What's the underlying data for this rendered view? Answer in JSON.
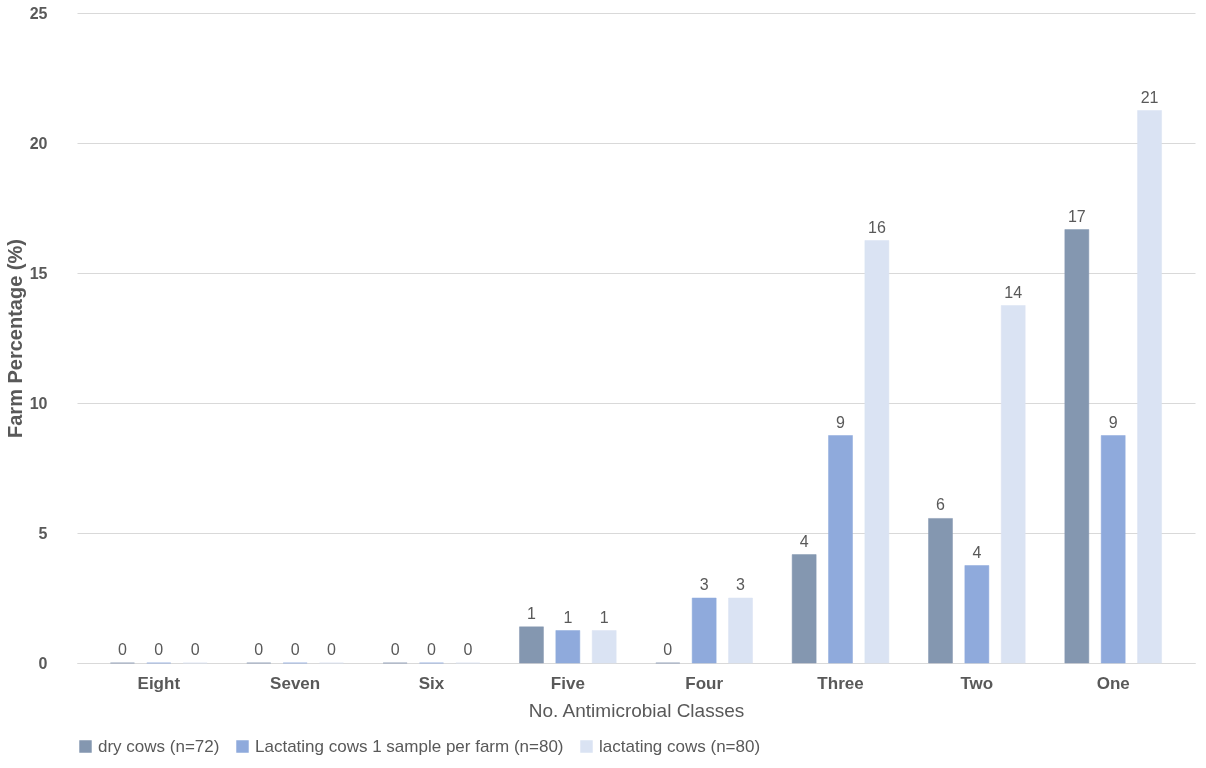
{
  "chart_data": {
    "type": "bar",
    "xlabel": "No. Antimicrobial Classes",
    "ylabel": "Farm Percentage (%)",
    "categories": [
      "Eight",
      "Seven",
      "Six",
      "Five",
      "Four",
      "Three",
      "Two",
      "One"
    ],
    "series": [
      {
        "name": "dry cows (n=72)",
        "color": "#8497b0",
        "values": [
          0,
          0,
          0,
          1.39,
          0,
          4.17,
          5.56,
          16.67
        ],
        "value_labels": [
          "0",
          "0",
          "0",
          "1",
          "0",
          "4",
          "6",
          "17"
        ]
      },
      {
        "name": "Lactating cows 1 sample per farm (n=80)",
        "color": "#8faadc",
        "values": [
          0,
          0,
          0,
          1.25,
          2.5,
          8.75,
          3.75,
          8.75
        ],
        "value_labels": [
          "0",
          "0",
          "0",
          "1",
          "3",
          "9",
          "4",
          "9"
        ]
      },
      {
        "name": "lactating cows (n=80)",
        "color": "#dae3f3",
        "values": [
          0,
          0,
          0,
          1.25,
          2.5,
          16.25,
          13.75,
          21.25
        ],
        "value_labels": [
          "0",
          "0",
          "0",
          "1",
          "3",
          "16",
          "14",
          "21"
        ]
      }
    ],
    "ylim": [
      0,
      25
    ],
    "yticks": [
      0,
      5,
      10,
      15,
      20,
      25
    ],
    "grid": "y",
    "legend": "bottom"
  }
}
